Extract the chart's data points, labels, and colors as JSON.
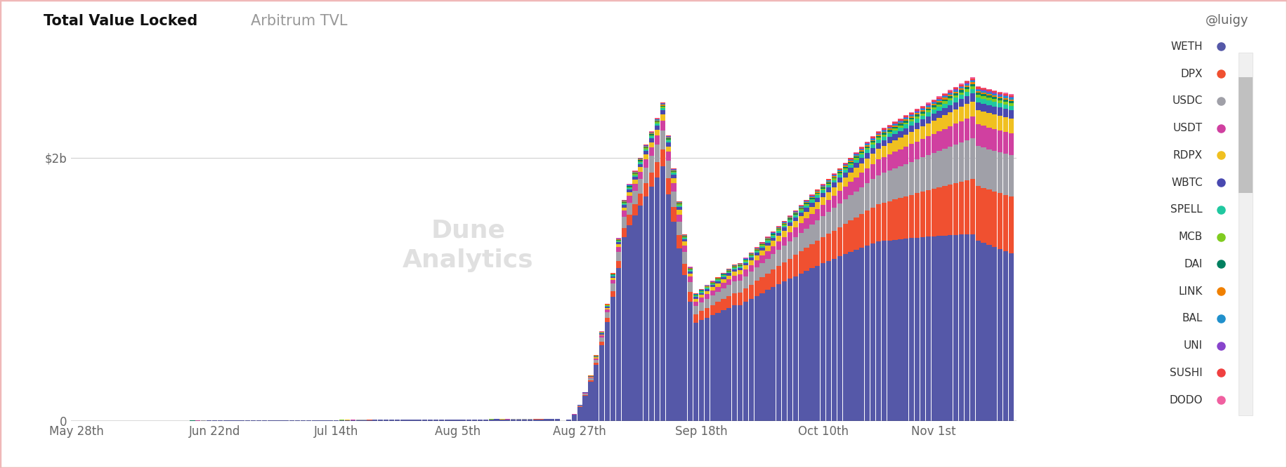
{
  "title_bold": "Total Value Locked",
  "title_light": "Arbitrum TVL",
  "xlabel_ticks": [
    "May 28th",
    "Jun 22nd",
    "Jul 14th",
    "Aug 5th",
    "Aug 27th",
    "Sep 18th",
    "Oct 10th",
    "Nov 1st"
  ],
  "y2b": 2000000000,
  "background_color": "#ffffff",
  "border_color": "#f0b8b8",
  "legend_items": [
    {
      "label": "WETH",
      "color": "#5558a8"
    },
    {
      "label": "DPX",
      "color": "#f05030"
    },
    {
      "label": "USDC",
      "color": "#a0a0a8"
    },
    {
      "label": "USDT",
      "color": "#d040a0"
    },
    {
      "label": "RDPX",
      "color": "#f0c020"
    },
    {
      "label": "WBTC",
      "color": "#4848b0"
    },
    {
      "label": "SPELL",
      "color": "#20c8a0"
    },
    {
      "label": "MCB",
      "color": "#80cc20"
    },
    {
      "label": "DAI",
      "color": "#008060"
    },
    {
      "label": "LINK",
      "color": "#f08000"
    },
    {
      "label": "BAL",
      "color": "#2090cc"
    },
    {
      "label": "UNI",
      "color": "#8844cc"
    },
    {
      "label": "SUSHI",
      "color": "#f04040"
    },
    {
      "label": "DODO",
      "color": "#f060a0"
    }
  ]
}
